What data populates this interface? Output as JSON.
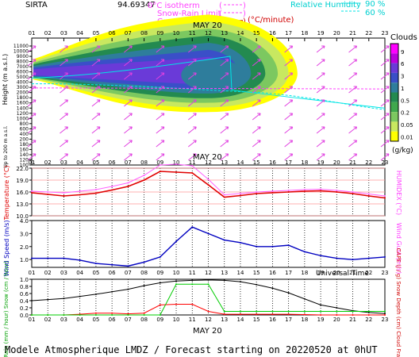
{
  "header": {
    "site": "SIRTA",
    "coords": "94.69347",
    "legend_isotherm": "0°C isotherm",
    "legend_snow_rain": "Snow-Rain Limit",
    "legend_convective": "Convective Heat",
    "legend_conv_unit": "(°C/minute)",
    "legend_rh": "Relative Humidity",
    "rh_90": "90 %",
    "rh_60": "60 %"
  },
  "footer": {
    "text": "Modele Atmospherique LMDZ / Forecast starting on 20220520 at 0hUT",
    "universal_time": "Universal Time"
  },
  "colors": {
    "rh_line": "#00e5e5",
    "isotherm": "#ff40ff",
    "convective": "#d00000",
    "wind_arrow": "#e040e0",
    "temperature": "#e00000",
    "humidex": "#ff60ff",
    "wind_speed": "#0000c0",
    "rain": "#ff0000",
    "snow": "#0000ff",
    "cloud_fraction": "#000000",
    "cape": "#00cc00"
  },
  "chart_data": [
    {
      "type": "heatmap",
      "title": "",
      "date_label": "MAY 20",
      "x_ticks": [
        "01",
        "02",
        "03",
        "04",
        "05",
        "06",
        "07",
        "08",
        "09",
        "10",
        "11",
        "12",
        "13",
        "14",
        "15",
        "16",
        "17",
        "18",
        "19",
        "20",
        "21",
        "22",
        "23"
      ],
      "ylabel": "Height (m a.s.l.)",
      "ylabel_low": "Up to 200 m a.s.l.",
      "y_ticks": [
        "11000",
        "10000",
        "9000",
        "8000",
        "7000",
        "6000",
        "5000",
        "4000",
        "3000",
        "2000",
        "1800",
        "1600",
        "1400",
        "1200",
        "1000",
        "800",
        "600",
        "400",
        "200",
        "180",
        "160",
        "140",
        "120",
        "100"
      ],
      "colorbar_title": "Clouds",
      "colorbar_unit": "(g/kg)",
      "colorbar_ticks": [
        "9",
        "6",
        "3",
        "1",
        "0.5",
        "0.2",
        "0.05",
        "0.01"
      ],
      "colorbar_colors": [
        "#ff00ff",
        "#bb00dd",
        "#6a3ad8",
        "#3a4fc8",
        "#2e7d9c",
        "#238a50",
        "#3fa84d",
        "#7cc860",
        "#c8e860",
        "#ffff00"
      ],
      "cloud_core_hours": [
        9,
        13
      ],
      "cloud_top_m": 9500
    },
    {
      "type": "line",
      "x": [
        1,
        2,
        3,
        4,
        5,
        6,
        7,
        8,
        9,
        10,
        11,
        12,
        13,
        14,
        15,
        16,
        17,
        18,
        19,
        20,
        21,
        22,
        23
      ],
      "ylabel": "Temperature (°C)",
      "ylabel_right": "HUMIDEX (°C)",
      "y_ticks": [
        "22.0",
        "19.0",
        "16.0",
        "13.0",
        "10.0"
      ],
      "ylim": [
        10,
        22
      ],
      "series": [
        {
          "name": "Temperature",
          "values": [
            15.8,
            15.4,
            15.0,
            15.3,
            15.7,
            16.5,
            17.4,
            19.0,
            21.2,
            21.0,
            20.8,
            17.8,
            14.7,
            15.1,
            15.6,
            15.8,
            16.0,
            16.2,
            16.3,
            16.0,
            15.6,
            15.0,
            14.5
          ]
        },
        {
          "name": "HUMIDEX",
          "values": [
            16.2,
            16.0,
            15.8,
            16.2,
            16.6,
            17.4,
            18.3,
            20.2,
            22.8,
            23.0,
            22.6,
            19.2,
            15.3,
            15.6,
            16.0,
            16.2,
            16.4,
            16.6,
            16.7,
            16.4,
            16.0,
            15.5,
            15.0
          ]
        }
      ]
    },
    {
      "type": "line",
      "x": [
        1,
        2,
        3,
        4,
        5,
        6,
        7,
        8,
        9,
        10,
        11,
        12,
        13,
        14,
        15,
        16,
        17,
        18,
        19,
        20,
        21,
        22,
        23
      ],
      "ylabel": "Wind Speed (m/s)",
      "ylabel_right": "Wind Gust (m/s)",
      "y_ticks": [
        "4.0",
        "3.0",
        "2.0",
        "1.0"
      ],
      "ylim": [
        0.4,
        4.0
      ],
      "series": [
        {
          "name": "Wind Speed",
          "values": [
            1.1,
            1.1,
            1.1,
            0.95,
            0.7,
            0.6,
            0.5,
            0.8,
            1.2,
            2.4,
            3.5,
            3.0,
            2.5,
            2.3,
            2.0,
            2.0,
            2.1,
            1.6,
            1.3,
            1.1,
            1.0,
            1.1,
            1.2
          ]
        }
      ]
    },
    {
      "type": "line",
      "x": [
        1,
        2,
        3,
        4,
        5,
        6,
        7,
        8,
        9,
        10,
        11,
        12,
        13,
        14,
        15,
        16,
        17,
        18,
        19,
        20,
        21,
        22,
        23
      ],
      "date_label": "MAY 20",
      "ylabel": "Rain (mm / hour) Snow (cm / hour)",
      "ylabel_right": "CAPE (J / g) Snow Depth (cm) Cloud Fraction",
      "y_ticks": [
        "1.0",
        "0.8",
        "0.6",
        "0.4",
        "0.2",
        "0.0"
      ],
      "ylim": [
        0,
        1.0
      ],
      "series": [
        {
          "name": "Cloud Fraction",
          "values": [
            0.4,
            0.43,
            0.46,
            0.52,
            0.58,
            0.65,
            0.72,
            0.82,
            0.9,
            0.95,
            0.97,
            0.98,
            0.97,
            0.93,
            0.85,
            0.75,
            0.62,
            0.45,
            0.28,
            0.2,
            0.12,
            0.07,
            0.04
          ]
        },
        {
          "name": "Rain",
          "values": [
            0,
            0,
            0,
            0.02,
            0.05,
            0.05,
            0.03,
            0.05,
            0.28,
            0.3,
            0.3,
            0.1,
            0.02,
            0.02,
            0.02,
            0.02,
            0.02,
            0.01,
            0,
            0,
            0,
            0,
            0
          ]
        },
        {
          "name": "CAPE",
          "values": [
            0,
            0,
            0,
            0,
            0,
            0,
            0,
            0,
            0,
            0.86,
            0.86,
            0.86,
            0.1,
            0.1,
            0.1,
            0.1,
            0.1,
            0.1,
            0.1,
            0.1,
            0.1,
            0.1,
            0.1
          ]
        }
      ]
    }
  ]
}
